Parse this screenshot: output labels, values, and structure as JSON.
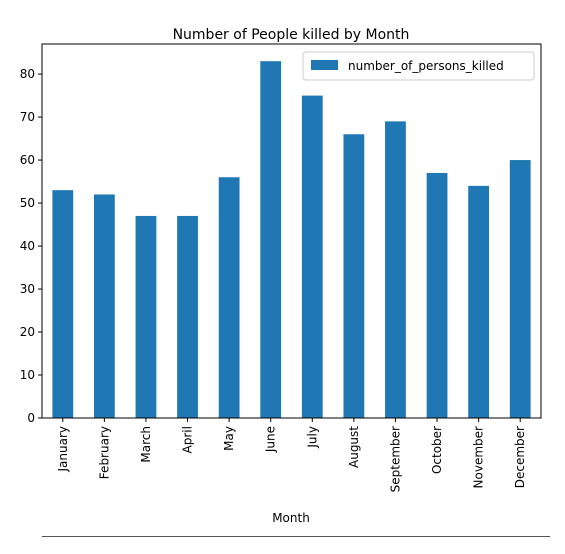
{
  "chart_data": {
    "type": "bar",
    "title": "Number of People killed by Month",
    "xlabel": "Month",
    "ylabel": "",
    "categories": [
      "January",
      "February",
      "March",
      "April",
      "May",
      "June",
      "July",
      "August",
      "September",
      "October",
      "November",
      "December"
    ],
    "series": [
      {
        "name": "number_of_persons_killed",
        "values": [
          53,
          52,
          47,
          47,
          56,
          83,
          75,
          66,
          69,
          57,
          54,
          60
        ],
        "color": "#1f77b4"
      }
    ],
    "ylim": [
      0,
      87
    ],
    "yticks": [
      0,
      10,
      20,
      30,
      40,
      50,
      60,
      70,
      80
    ],
    "legend": "top-right",
    "grid": false
  }
}
